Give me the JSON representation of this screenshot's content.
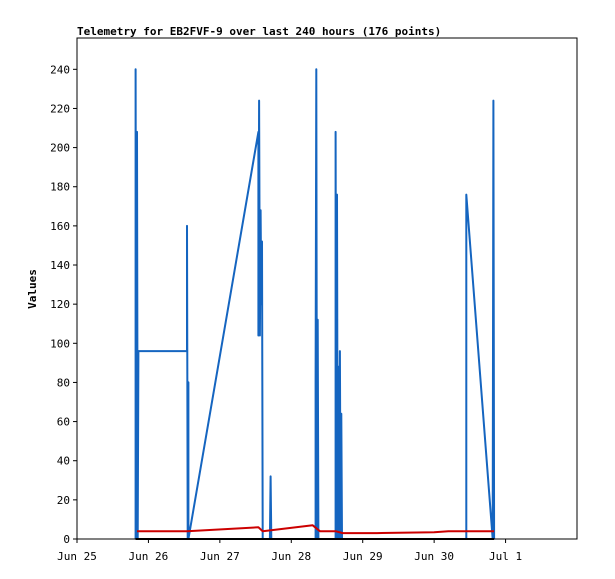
{
  "chart_data": {
    "type": "line",
    "title": "Telemetry for EB2FVF-9 over last 240 hours (176 points)",
    "xlabel": "",
    "ylabel": "Values",
    "xlim": [
      0,
      7
    ],
    "ylim": [
      0,
      256
    ],
    "x_tick_labels": [
      "Jun 25",
      "Jun 26",
      "Jun 27",
      "Jun 28",
      "Jun 29",
      "Jun 30",
      "Jul 1"
    ],
    "y_ticks": [
      0,
      20,
      40,
      60,
      80,
      100,
      120,
      140,
      160,
      180,
      200,
      220,
      240
    ],
    "grid": false,
    "series": [
      {
        "color": "#1565c0",
        "points": [
          [
            0.82,
            0
          ],
          [
            0.82,
            240
          ],
          [
            0.83,
            0
          ],
          [
            0.84,
            208
          ],
          [
            0.85,
            0
          ],
          [
            0.86,
            96
          ],
          [
            1.54,
            96
          ],
          [
            1.54,
            160
          ],
          [
            1.55,
            0
          ],
          [
            1.56,
            80
          ],
          [
            1.56,
            0
          ],
          [
            2.54,
            208
          ],
          [
            2.54,
            104
          ],
          [
            2.55,
            224
          ],
          [
            2.56,
            104
          ],
          [
            2.57,
            168
          ],
          [
            2.58,
            120
          ],
          [
            2.59,
            152
          ],
          [
            2.6,
            0
          ],
          [
            2.7,
            0
          ],
          [
            2.71,
            32
          ],
          [
            2.72,
            0
          ],
          [
            3.34,
            0
          ],
          [
            3.34,
            80
          ],
          [
            3.35,
            240
          ],
          [
            3.36,
            0
          ],
          [
            3.37,
            112
          ],
          [
            3.38,
            0
          ],
          [
            3.62,
            0
          ],
          [
            3.62,
            208
          ],
          [
            3.63,
            0
          ],
          [
            3.64,
            176
          ],
          [
            3.65,
            0
          ],
          [
            3.66,
            88
          ],
          [
            3.67,
            0
          ],
          [
            3.68,
            96
          ],
          [
            3.69,
            0
          ],
          [
            3.7,
            64
          ],
          [
            3.71,
            0
          ],
          [
            5.45,
            0
          ],
          [
            5.45,
            176
          ],
          [
            5.82,
            0
          ],
          [
            5.83,
            224
          ],
          [
            5.84,
            0
          ]
        ]
      },
      {
        "color": "#cc0000",
        "points": [
          [
            0.84,
            4
          ],
          [
            1.54,
            4
          ],
          [
            2.54,
            6
          ],
          [
            2.6,
            4
          ],
          [
            3.3,
            7
          ],
          [
            3.4,
            4
          ],
          [
            3.62,
            4
          ],
          [
            3.72,
            3
          ],
          [
            4.0,
            3
          ],
          [
            4.2,
            3
          ],
          [
            5.0,
            3.5
          ],
          [
            5.2,
            4
          ],
          [
            5.84,
            4
          ]
        ]
      },
      {
        "color": "#000000",
        "points": [
          [
            0.82,
            0
          ],
          [
            5.84,
            0
          ]
        ]
      }
    ]
  }
}
